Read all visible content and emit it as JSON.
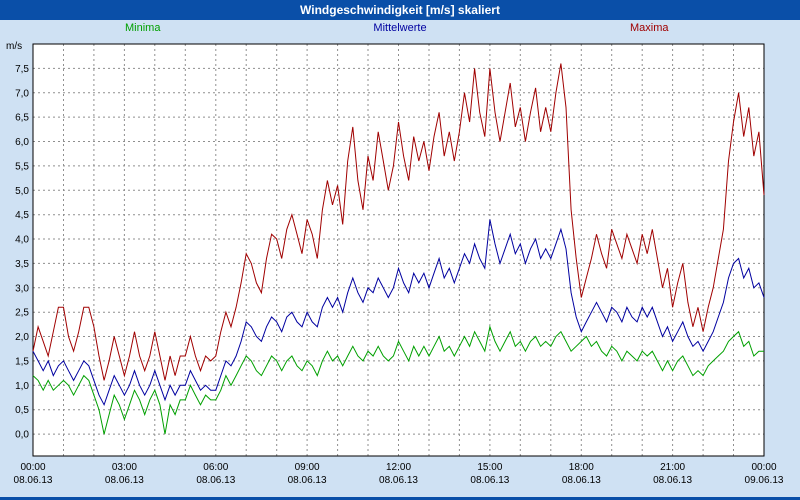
{
  "header": {
    "title": "Windgeschwindigkeit [m/s] skaliert"
  },
  "colors": {
    "background": "#cfe1f3",
    "titlebar": "#0a4fa8",
    "plot_bg": "#ffffff",
    "grid": "#8f8f8f",
    "axis_border": "#000000",
    "minima": "#00a000",
    "mittelwerte": "#0000a0",
    "maxima": "#a00000"
  },
  "chart_data": {
    "type": "line",
    "title": "Windgeschwindigkeit [m/s] skaliert",
    "ylabel": "m/s",
    "ylim": [
      0.0,
      7.5
    ],
    "y_tick_step": 0.5,
    "y_ticks": [
      "0,0",
      "0,5",
      "1,0",
      "1,5",
      "2,0",
      "2,5",
      "3,0",
      "3,5",
      "4,0",
      "4,5",
      "5,0",
      "5,5",
      "6,0",
      "6,5",
      "7,0",
      "7,5"
    ],
    "x_minutes_step": 10,
    "x_tick_interval_minutes": 180,
    "x_ticks": [
      {
        "time": "00:00",
        "date": "08.06.13"
      },
      {
        "time": "03:00",
        "date": "08.06.13"
      },
      {
        "time": "06:00",
        "date": "08.06.13"
      },
      {
        "time": "09:00",
        "date": "08.06.13"
      },
      {
        "time": "12:00",
        "date": "08.06.13"
      },
      {
        "time": "15:00",
        "date": "08.06.13"
      },
      {
        "time": "18:00",
        "date": "08.06.13"
      },
      {
        "time": "21:00",
        "date": "08.06.13"
      },
      {
        "time": "00:00",
        "date": "09.06.13"
      }
    ],
    "legend": [
      {
        "label": "Minima",
        "color": "#00a000"
      },
      {
        "label": "Mittelwerte",
        "color": "#0000a0"
      },
      {
        "label": "Maxima",
        "color": "#a00000"
      }
    ],
    "grid": "dashed",
    "legend_position": "top",
    "series": [
      {
        "name": "Minima",
        "color": "#00a000",
        "values": [
          1.2,
          1.1,
          0.9,
          1.1,
          0.9,
          1.0,
          1.1,
          1.0,
          0.8,
          1.0,
          1.2,
          1.1,
          0.8,
          0.5,
          0.0,
          0.4,
          0.8,
          0.6,
          0.3,
          0.6,
          0.9,
          0.7,
          0.4,
          0.7,
          0.9,
          0.6,
          0.0,
          0.6,
          0.4,
          0.7,
          0.7,
          1.0,
          0.8,
          0.6,
          0.8,
          0.7,
          0.7,
          0.9,
          1.2,
          1.0,
          1.2,
          1.4,
          1.6,
          1.5,
          1.3,
          1.2,
          1.4,
          1.6,
          1.5,
          1.3,
          1.5,
          1.6,
          1.4,
          1.3,
          1.5,
          1.4,
          1.2,
          1.5,
          1.7,
          1.5,
          1.6,
          1.4,
          1.6,
          1.8,
          1.6,
          1.5,
          1.7,
          1.6,
          1.8,
          1.6,
          1.5,
          1.6,
          1.9,
          1.7,
          1.5,
          1.8,
          1.6,
          1.8,
          1.6,
          1.8,
          2.0,
          1.7,
          1.8,
          1.6,
          1.8,
          2.0,
          1.8,
          2.1,
          1.9,
          1.7,
          2.2,
          1.9,
          1.7,
          1.9,
          2.1,
          1.8,
          1.9,
          1.7,
          1.9,
          2.0,
          1.8,
          1.9,
          1.8,
          2.0,
          2.1,
          1.9,
          1.7,
          1.8,
          1.9,
          2.0,
          1.8,
          1.9,
          1.7,
          1.6,
          1.8,
          1.7,
          1.5,
          1.7,
          1.6,
          1.5,
          1.7,
          1.6,
          1.7,
          1.5,
          1.3,
          1.5,
          1.3,
          1.5,
          1.6,
          1.4,
          1.2,
          1.3,
          1.2,
          1.4,
          1.5,
          1.6,
          1.7,
          1.9,
          2.0,
          2.1,
          1.8,
          1.9,
          1.6,
          1.7,
          1.7
        ]
      },
      {
        "name": "Mittelwerte",
        "color": "#0000a0",
        "values": [
          1.7,
          1.5,
          1.3,
          1.5,
          1.2,
          1.4,
          1.5,
          1.3,
          1.1,
          1.3,
          1.5,
          1.4,
          1.1,
          0.8,
          0.6,
          0.9,
          1.2,
          1.0,
          0.8,
          1.0,
          1.3,
          1.0,
          0.8,
          1.0,
          1.3,
          1.0,
          0.7,
          1.0,
          0.8,
          1.0,
          1.0,
          1.3,
          1.1,
          0.9,
          1.0,
          0.9,
          0.9,
          1.2,
          1.5,
          1.4,
          1.6,
          1.9,
          2.3,
          2.2,
          2.0,
          1.9,
          2.2,
          2.4,
          2.3,
          2.1,
          2.4,
          2.5,
          2.3,
          2.2,
          2.5,
          2.3,
          2.2,
          2.6,
          2.8,
          2.6,
          2.8,
          2.5,
          2.9,
          3.2,
          2.9,
          2.7,
          3.0,
          2.9,
          3.2,
          3.0,
          2.8,
          3.0,
          3.4,
          3.1,
          2.9,
          3.3,
          3.1,
          3.3,
          3.0,
          3.3,
          3.6,
          3.2,
          3.4,
          3.1,
          3.4,
          3.7,
          3.5,
          3.9,
          3.6,
          3.4,
          4.4,
          3.9,
          3.5,
          3.8,
          4.1,
          3.7,
          3.9,
          3.5,
          3.8,
          4.0,
          3.6,
          3.8,
          3.6,
          3.9,
          4.2,
          3.8,
          2.9,
          2.4,
          2.1,
          2.3,
          2.5,
          2.7,
          2.5,
          2.3,
          2.6,
          2.5,
          2.3,
          2.6,
          2.4,
          2.3,
          2.6,
          2.4,
          2.6,
          2.3,
          2.0,
          2.2,
          1.9,
          2.1,
          2.3,
          2.0,
          1.8,
          1.9,
          1.7,
          1.9,
          2.1,
          2.4,
          2.7,
          3.2,
          3.5,
          3.6,
          3.2,
          3.4,
          3.0,
          3.1,
          2.8
        ]
      },
      {
        "name": "Maxima",
        "color": "#a00000",
        "values": [
          1.7,
          2.2,
          1.9,
          1.6,
          2.1,
          2.6,
          2.6,
          2.0,
          1.7,
          2.1,
          2.6,
          2.6,
          2.2,
          1.6,
          1.1,
          1.5,
          2.0,
          1.6,
          1.2,
          1.6,
          2.1,
          1.6,
          1.3,
          1.6,
          2.1,
          1.6,
          1.1,
          1.6,
          1.2,
          1.6,
          1.6,
          2.0,
          1.6,
          1.3,
          1.6,
          1.5,
          1.6,
          2.1,
          2.5,
          2.2,
          2.6,
          3.1,
          3.7,
          3.5,
          3.1,
          2.9,
          3.6,
          4.1,
          4.0,
          3.6,
          4.2,
          4.5,
          4.1,
          3.7,
          4.4,
          4.1,
          3.6,
          4.6,
          5.2,
          4.7,
          5.1,
          4.3,
          5.6,
          6.3,
          5.2,
          4.6,
          5.7,
          5.2,
          6.2,
          5.6,
          5.0,
          5.5,
          6.4,
          5.7,
          5.2,
          6.1,
          5.6,
          6.0,
          5.4,
          6.1,
          6.6,
          5.7,
          6.2,
          5.6,
          6.2,
          7.0,
          6.4,
          7.5,
          6.6,
          6.1,
          7.5,
          6.6,
          6.0,
          6.6,
          7.2,
          6.3,
          6.7,
          6.0,
          6.6,
          7.1,
          6.2,
          6.7,
          6.2,
          7.0,
          7.6,
          6.7,
          4.6,
          3.6,
          2.8,
          3.2,
          3.6,
          4.1,
          3.7,
          3.4,
          4.2,
          3.9,
          3.6,
          4.1,
          3.8,
          3.5,
          4.1,
          3.7,
          4.2,
          3.6,
          3.0,
          3.4,
          2.6,
          3.1,
          3.5,
          2.7,
          2.2,
          2.6,
          2.1,
          2.6,
          3.0,
          3.6,
          4.2,
          5.6,
          6.4,
          7.0,
          6.1,
          6.7,
          5.7,
          6.2,
          4.9
        ]
      }
    ]
  }
}
